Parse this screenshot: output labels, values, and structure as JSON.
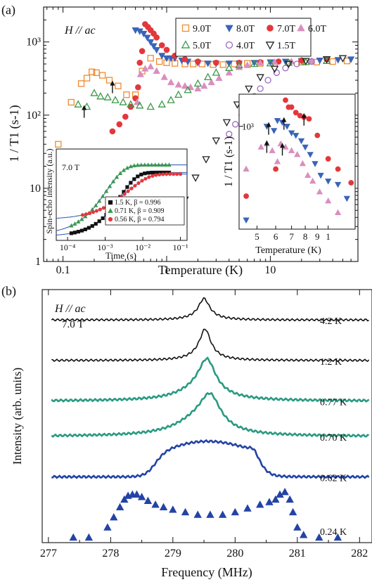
{
  "panels": {
    "a_label": "(a)",
    "b_label": "(b)"
  },
  "colors": {
    "f9": "#f08a2e",
    "f8": "#3a64b8",
    "f7": "#e3373c",
    "f6": "#d98fbe",
    "f5": "#3a9a4a",
    "f4": "#9a6ac0",
    "f15": "#222222",
    "teal": "#2a9a82",
    "navy": "#2343a6",
    "black": "#111111"
  },
  "chart_data": [
    {
      "type": "scatter",
      "panel": "a-main",
      "annotation": "H // ac",
      "xlabel": "Temperature (K)",
      "ylabel": "1 / T1 (s-1)",
      "xscale": "log",
      "yscale": "log",
      "xlim": [
        0.065,
        70
      ],
      "ylim": [
        1,
        3000
      ],
      "xticks": [
        "0.1",
        "1",
        "10"
      ],
      "yticks": [
        "1",
        "10",
        "10²",
        "10³"
      ],
      "legend_position": "top-right",
      "series": [
        {
          "name": "9.0T",
          "marker": "square-open",
          "color": "#f08a2e",
          "x": [
            0.09,
            0.12,
            0.15,
            0.17,
            0.19,
            0.21,
            0.24,
            0.28,
            0.34,
            0.41,
            0.5,
            0.58,
            0.7,
            0.85,
            1.0,
            1.2,
            1.5,
            1.8,
            2.2,
            2.8,
            3.5,
            4.5,
            6,
            8,
            11,
            15,
            20,
            28,
            40,
            55
          ],
          "y": [
            40,
            150,
            270,
            320,
            390,
            380,
            350,
            300,
            250,
            190,
            190,
            400,
            600,
            540,
            520,
            510,
            500,
            500,
            500,
            490,
            490,
            500,
            510,
            510,
            510,
            520,
            530,
            530,
            540,
            550
          ]
        },
        {
          "name": "8.0T",
          "marker": "tri-down",
          "color": "#3a64b8",
          "x": [
            0.5,
            0.55,
            0.6,
            0.65,
            0.7,
            0.75,
            0.8,
            0.9,
            1.0,
            1.1,
            1.2,
            1.4,
            1.6,
            2.0,
            2.5,
            3.0,
            4.0,
            5.0,
            7.0,
            10,
            14,
            20,
            30,
            45,
            60
          ],
          "y": [
            1450,
            1400,
            1300,
            1150,
            1000,
            880,
            780,
            650,
            600,
            600,
            600,
            560,
            540,
            520,
            510,
            510,
            510,
            510,
            520,
            530,
            540,
            550,
            560,
            570,
            580
          ]
        },
        {
          "name": "7.0T",
          "marker": "circle",
          "color": "#e3373c",
          "x": [
            0.3,
            0.35,
            0.4,
            0.45,
            0.5,
            0.53,
            0.55,
            0.58,
            0.62,
            0.66,
            0.7,
            0.75,
            0.8,
            0.9,
            1.0,
            1.2,
            1.5,
            2.0,
            3.0,
            5.0,
            8.0,
            12,
            20,
            35
          ],
          "y": [
            60,
            75,
            95,
            130,
            170,
            240,
            520,
            750,
            1750,
            1600,
            1450,
            1300,
            1150,
            900,
            780,
            650,
            580,
            540,
            520,
            520,
            530,
            540,
            560,
            580
          ]
        },
        {
          "name": "6.0T",
          "marker": "tri-up",
          "color": "#d98fbe",
          "x": [
            0.52,
            0.56,
            0.62,
            0.7,
            0.8,
            0.95,
            1.1,
            1.3,
            1.5,
            1.7,
            2.0,
            2.3,
            2.7,
            3.2,
            4.0,
            5.0,
            6.0,
            8.0,
            11,
            16,
            25
          ],
          "y": [
            150,
            360,
            430,
            460,
            400,
            330,
            280,
            260,
            250,
            240,
            230,
            250,
            280,
            320,
            380,
            450,
            480,
            520,
            530,
            540,
            550
          ]
        },
        {
          "name": "5.0T",
          "marker": "tri-up-open",
          "color": "#3a9a4a",
          "x": [
            0.14,
            0.17,
            0.2,
            0.23,
            0.27,
            0.32,
            0.38,
            0.45,
            0.55,
            0.7,
            0.9,
            1.1,
            1.3,
            1.6,
            2.0,
            2.5,
            3.0,
            4.0,
            5.0,
            7.0,
            10,
            15,
            22,
            35
          ],
          "y": [
            140,
            130,
            200,
            180,
            175,
            160,
            150,
            140,
            135,
            130,
            140,
            160,
            190,
            220,
            270,
            330,
            380,
            440,
            480,
            500,
            510,
            520,
            530,
            550
          ]
        },
        {
          "name": "4.0T",
          "marker": "circle-open",
          "color": "#9a6ac0",
          "x": [
            4.0,
            4.6,
            5.3,
            6.0,
            7.0,
            8.0,
            9.5,
            11.5,
            14,
            18,
            25
          ],
          "y": [
            55,
            75,
            100,
            130,
            180,
            230,
            300,
            380,
            440,
            500,
            540
          ]
        },
        {
          "name": "1.5T",
          "marker": "tri-down-open",
          "color": "#222222",
          "x": [
            1.5,
            1.9,
            2.4,
            3.0,
            3.8,
            4.8,
            6.2,
            8,
            11,
            15,
            22,
            35,
            50
          ],
          "y": [
            7,
            14,
            25,
            45,
            80,
            140,
            230,
            330,
            430,
            500,
            550,
            580,
            600
          ]
        }
      ],
      "arrows": [
        {
          "x": 0.3,
          "y": 260
        },
        {
          "x": 0.16,
          "y": 120
        }
      ]
    },
    {
      "type": "line",
      "panel": "a-inset-left",
      "annotation": "7.0 T",
      "xlabel": "Time (s)",
      "ylabel": "Spin-echo intensity (a.u.)",
      "xscale": "log",
      "xlim": [
        5e-05,
        0.15
      ],
      "xticks": [
        "10⁻⁴",
        "10⁻³",
        "10⁻²",
        "10⁻¹"
      ],
      "legend_position": "bottom-right",
      "series": [
        {
          "name": "1.5 K, β = 0.996",
          "marker": "square",
          "color": "#111111",
          "offset": -0.02,
          "T1": 0.0026,
          "beta": 0.996,
          "amp": 0.84
        },
        {
          "name": "0.71 K, β = 0.909",
          "marker": "tri-up",
          "color": "#3a9a4a",
          "offset": 0.0,
          "T1": 0.0011,
          "beta": 0.909,
          "amp": 0.92
        },
        {
          "name": "0.56 K, β = 0.794",
          "marker": "circle",
          "color": "#e3373c",
          "offset": 0.2,
          "T1": 0.0042,
          "beta": 0.794,
          "amp": 0.6
        }
      ]
    },
    {
      "type": "scatter",
      "panel": "a-inset-right",
      "xlabel": "Temperature (K)",
      "ylabel": "1 / T1 (s-1)",
      "xscale": "log",
      "yscale": "log",
      "xlim": [
        4.2,
        13
      ],
      "ylim": [
        80,
        2200
      ],
      "xticks": [
        "5",
        "6",
        "7",
        "8",
        "9",
        "1"
      ],
      "yticks": [
        "10³"
      ],
      "series": [
        {
          "name": "8.0T",
          "marker": "tri-down",
          "color": "#3a64b8",
          "x": [
            4.5,
            5.5,
            5.9,
            6.1,
            6.4,
            6.7,
            7.0,
            7.3,
            7.7,
            8.0,
            8.4,
            8.8,
            9.3,
            10,
            11,
            12
          ],
          "y": [
            100,
            1000,
            900,
            1150,
            1100,
            1000,
            850,
            800,
            700,
            600,
            500,
            400,
            300,
            260,
            240,
            170
          ]
        },
        {
          "name": "7.0T",
          "marker": "circle",
          "color": "#e3373c",
          "x": [
            4.5,
            6.0,
            6.6,
            6.8,
            7.0,
            7.3,
            7.6,
            7.9,
            8.3,
            9.0,
            10,
            11,
            12.5
          ],
          "y": [
            180,
            350,
            1900,
            1600,
            1600,
            1400,
            1300,
            1250,
            1200,
            800,
            450,
            350,
            250
          ]
        },
        {
          "name": "6.0T",
          "marker": "tri-up",
          "color": "#d98fbe",
          "x": [
            4.5,
            5.2,
            5.5,
            5.8,
            6.1,
            6.3,
            6.6,
            7.0,
            7.4,
            7.8,
            8.2,
            8.6,
            9.2,
            10,
            11
          ],
          "y": [
            350,
            600,
            650,
            550,
            420,
            650,
            600,
            550,
            500,
            400,
            300,
            260,
            200,
            160,
            120
          ]
        }
      ],
      "arrows": [
        {
          "x": 5.5,
          "y": 640
        },
        {
          "x": 5.6,
          "y": 1000
        },
        {
          "x": 6.4,
          "y": 600
        },
        {
          "x": 6.5,
          "y": 1130
        },
        {
          "x": 7.9,
          "y": 1250
        }
      ]
    },
    {
      "type": "line",
      "panel": "b",
      "annotation": "H // ac",
      "annotation2": "7.0 T",
      "xlabel": "Frequency (MHz)",
      "ylabel": "Intensity (arb. units)",
      "xlim": [
        276.9,
        282.2
      ],
      "xticks": [
        "277",
        "278",
        "279",
        "280",
        "281",
        "282"
      ],
      "traces": [
        {
          "label": "4.2 K",
          "color": "#111111",
          "style": "line",
          "baseline": 0.88,
          "peaks": [
            [
              279.5,
              0.06,
              0.095
            ],
            [
              279.5,
              0.025,
              0.2
            ]
          ]
        },
        {
          "label": "1.2 K",
          "color": "#111111",
          "style": "line",
          "baseline": 0.72,
          "peaks": [
            [
              279.52,
              0.085,
              0.095
            ],
            [
              279.5,
              0.04,
              0.2
            ]
          ]
        },
        {
          "label": "0.77 K",
          "color": "#2a9a82",
          "style": "line",
          "baseline": 0.56,
          "peaks": [
            [
              279.55,
              0.12,
              0.16
            ],
            [
              279.45,
              0.05,
              0.4
            ]
          ]
        },
        {
          "label": "0.70 K",
          "color": "#2a9a82",
          "style": "line",
          "baseline": 0.42,
          "peaks": [
            [
              279.6,
              0.12,
              0.2
            ],
            [
              279.4,
              0.06,
              0.45
            ]
          ]
        },
        {
          "label": "0.62 K",
          "color": "#2343a6",
          "style": "line",
          "baseline": 0.26,
          "plateau": [
            278.7,
            280.4,
            0.14
          ]
        },
        {
          "label": "0.24 K",
          "color": "#2343a6",
          "style": "points",
          "baseline": 0.02,
          "x": [
            277.4,
            277.65,
            277.95,
            278.05,
            278.15,
            278.22,
            278.28,
            278.35,
            278.42,
            278.5,
            278.6,
            278.72,
            278.85,
            279.0,
            279.2,
            279.4,
            279.6,
            279.8,
            280.0,
            280.2,
            280.4,
            280.55,
            280.65,
            280.72,
            280.8,
            280.88,
            280.93,
            281.0,
            281.1,
            281.35,
            281.65
          ],
          "y": [
            0.02,
            0.02,
            0.06,
            0.1,
            0.14,
            0.17,
            0.185,
            0.19,
            0.19,
            0.18,
            0.165,
            0.15,
            0.14,
            0.13,
            0.12,
            0.11,
            0.11,
            0.11,
            0.12,
            0.135,
            0.15,
            0.16,
            0.17,
            0.19,
            0.2,
            0.17,
            0.12,
            0.06,
            0.03,
            0.02,
            0.02
          ]
        }
      ]
    }
  ]
}
